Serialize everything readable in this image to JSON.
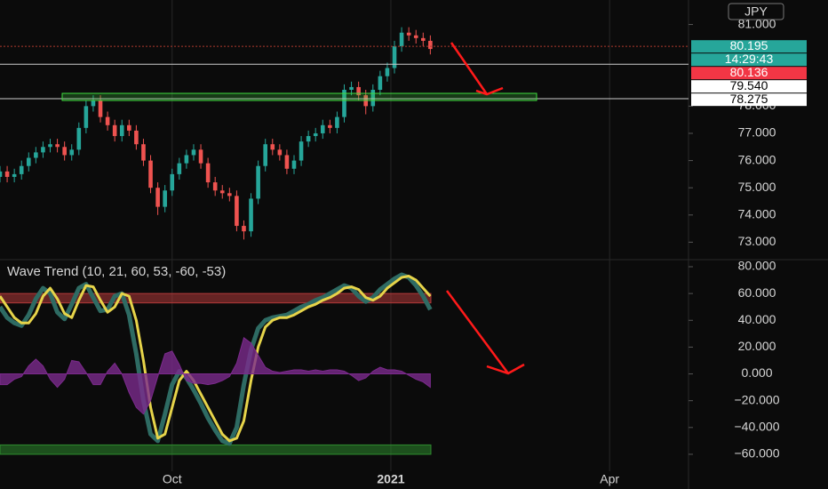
{
  "chart_data": [
    {
      "type": "candlestick",
      "currency": "JPY",
      "countdown": "14:29:43",
      "open": [
        75.4,
        75.6,
        75.4,
        75.5,
        75.8,
        76.1,
        76.3,
        76.5,
        76.6,
        76.5,
        76.2,
        76.4,
        77.2,
        78.0,
        78.2,
        77.6,
        77.3,
        76.9,
        77.3,
        77.1,
        76.6,
        76.0,
        75.0,
        74.3,
        74.9,
        75.5,
        75.9,
        76.2,
        76.4,
        75.9,
        75.2,
        74.9,
        74.8,
        74.7,
        73.6,
        73.4,
        74.6,
        75.8,
        76.6,
        76.4,
        76.2,
        75.7,
        76.0,
        76.7,
        76.9,
        77.0,
        77.3,
        77.2,
        77.6,
        78.6,
        78.7,
        78.4,
        78.0,
        78.6,
        79.1,
        79.4,
        80.2,
        80.7,
        80.6,
        80.5,
        80.4
      ],
      "high": [
        75.8,
        75.8,
        75.7,
        76.0,
        76.3,
        76.5,
        76.7,
        76.8,
        76.8,
        76.7,
        76.6,
        77.4,
        78.2,
        78.4,
        78.4,
        77.8,
        77.5,
        77.5,
        77.5,
        77.3,
        76.8,
        76.2,
        75.2,
        75.1,
        75.7,
        76.1,
        76.4,
        76.6,
        76.6,
        76.1,
        75.4,
        75.1,
        75.0,
        74.9,
        73.8,
        74.8,
        76.0,
        76.8,
        76.8,
        76.6,
        76.4,
        76.2,
        76.9,
        77.1,
        77.2,
        77.5,
        77.5,
        77.8,
        78.8,
        78.9,
        78.9,
        78.6,
        78.8,
        79.3,
        79.6,
        80.4,
        80.9,
        80.9,
        80.8,
        80.7,
        80.6
      ],
      "low": [
        75.2,
        75.2,
        75.2,
        75.3,
        75.6,
        75.9,
        76.1,
        76.3,
        76.3,
        76.0,
        76.0,
        76.2,
        77.0,
        77.8,
        77.4,
        77.1,
        76.7,
        76.7,
        76.9,
        76.4,
        75.8,
        74.8,
        74.0,
        74.1,
        74.7,
        75.3,
        75.7,
        76.0,
        75.7,
        75.0,
        74.7,
        74.6,
        74.5,
        73.4,
        73.1,
        73.2,
        74.4,
        75.6,
        76.2,
        76.0,
        75.5,
        75.5,
        75.8,
        76.5,
        76.7,
        76.8,
        77.0,
        77.0,
        77.4,
        78.4,
        78.2,
        77.7,
        77.8,
        78.4,
        78.9,
        79.2,
        80.0,
        80.4,
        80.3,
        80.2,
        79.9
      ],
      "close": [
        75.6,
        75.4,
        75.5,
        75.8,
        76.1,
        76.3,
        76.5,
        76.6,
        76.5,
        76.2,
        76.4,
        77.2,
        78.0,
        78.2,
        77.6,
        77.3,
        76.9,
        77.3,
        77.1,
        76.6,
        76.0,
        75.0,
        74.3,
        74.9,
        75.5,
        75.9,
        76.2,
        76.4,
        75.9,
        75.2,
        74.9,
        74.8,
        74.7,
        73.6,
        73.4,
        74.6,
        75.8,
        76.6,
        76.4,
        76.2,
        75.7,
        76.0,
        76.7,
        76.9,
        77.0,
        77.3,
        77.2,
        77.6,
        78.6,
        78.7,
        78.4,
        78.0,
        78.6,
        79.1,
        79.4,
        80.2,
        80.7,
        80.6,
        80.5,
        80.4,
        80.1
      ],
      "up_color": "#26a69a",
      "down_color": "#ef5350",
      "ylim": [
        72.36,
        81.9
      ],
      "yticks": [
        {
          "value": 73,
          "label": "73.000"
        },
        {
          "value": 74,
          "label": "74.000"
        },
        {
          "value": 75,
          "label": "75.000"
        },
        {
          "value": 76,
          "label": "76.000"
        },
        {
          "value": 77,
          "label": "77.000"
        },
        {
          "value": 78,
          "label": "78.000"
        },
        {
          "value": 81,
          "label": "81.000"
        }
      ],
      "price_lines": [
        {
          "value": 80.195,
          "color": "#26a69a",
          "line": "#b03a2e"
        },
        {
          "value": 80.136,
          "color": "#f23645"
        },
        {
          "value": {
            "value": 79.54,
            "label": "79.540"
          },
          "color": "#ffffff",
          "line": "#cccccc"
        },
        {
          "value": 78.275,
          "color": "#ffffff",
          "line": "#cccccc"
        }
      ]
    },
    {
      "type": "line",
      "title": "Wave Trend (10, 21, 60, 53, -60, -53)",
      "series": [
        {
          "color": "#2e6b63",
          "values": [
            50,
            42,
            38,
            36,
            44,
            56,
            64,
            60,
            46,
            41,
            52,
            64,
            67,
            57,
            47,
            48,
            58,
            60,
            44,
            15,
            -20,
            -45,
            -50,
            -30,
            -8,
            2,
            -3,
            -12,
            -22,
            -33,
            -42,
            -50,
            -52,
            -40,
            -8,
            18,
            34,
            40,
            42,
            43,
            44,
            47,
            50,
            52,
            55,
            57,
            60,
            63,
            66,
            64,
            58,
            54,
            57,
            63,
            67,
            71,
            74,
            72,
            66,
            58,
            48
          ]
        },
        {
          "color": "#e6d44a",
          "values": [
            58,
            50,
            42,
            38,
            38,
            45,
            58,
            64,
            56,
            45,
            42,
            55,
            66,
            65,
            55,
            46,
            50,
            60,
            58,
            40,
            10,
            -25,
            -48,
            -45,
            -25,
            -5,
            2,
            -5,
            -15,
            -25,
            -35,
            -45,
            -50,
            -48,
            -35,
            -5,
            20,
            35,
            40,
            42,
            42,
            44,
            47,
            50,
            52,
            55,
            57,
            60,
            64,
            65,
            63,
            57,
            55,
            58,
            64,
            68,
            72,
            73,
            70,
            64,
            58
          ]
        },
        {
          "color": "#7b2a8c",
          "area": true,
          "values": [
            -8,
            -8,
            -4,
            -2,
            6,
            11,
            6,
            -4,
            -10,
            -4,
            10,
            9,
            1,
            -8,
            -8,
            2,
            8,
            0,
            -14,
            -25,
            -30,
            -20,
            -2,
            15,
            17,
            7,
            -5,
            -7,
            -7,
            -8,
            -7,
            -5,
            -2,
            8,
            27,
            23,
            14,
            5,
            2,
            1,
            2,
            3,
            3,
            2,
            3,
            2,
            3,
            3,
            2,
            -1,
            -5,
            -3,
            2,
            5,
            3,
            3,
            2,
            -1,
            -4,
            -6,
            -10
          ]
        }
      ],
      "bands": [
        {
          "from": 53,
          "to": 60,
          "color": "#b33a3a"
        },
        {
          "from": -53,
          "to": -60,
          "color": "#2e8b2e"
        }
      ],
      "ylim": [
        -66,
        85.3
      ],
      "yticks": [
        {
          "value": 80,
          "label": "80.000"
        },
        {
          "value": 60,
          "label": "60.000"
        },
        {
          "value": 40,
          "label": "40.000"
        },
        {
          "value": 20,
          "label": "20.000"
        },
        {
          "value": 0,
          "label": "0.000"
        },
        {
          "value": -20,
          "label": "−20.000"
        },
        {
          "value": -40,
          "label": "−40.000"
        },
        {
          "value": -60,
          "label": "−60.000"
        }
      ],
      "xlim": [
        0,
        96
      ],
      "xticks": [
        {
          "value": 24,
          "label": "Oct"
        },
        {
          "value": 54.5,
          "label": "2021"
        },
        {
          "value": 85,
          "label": "Apr"
        }
      ]
    }
  ]
}
